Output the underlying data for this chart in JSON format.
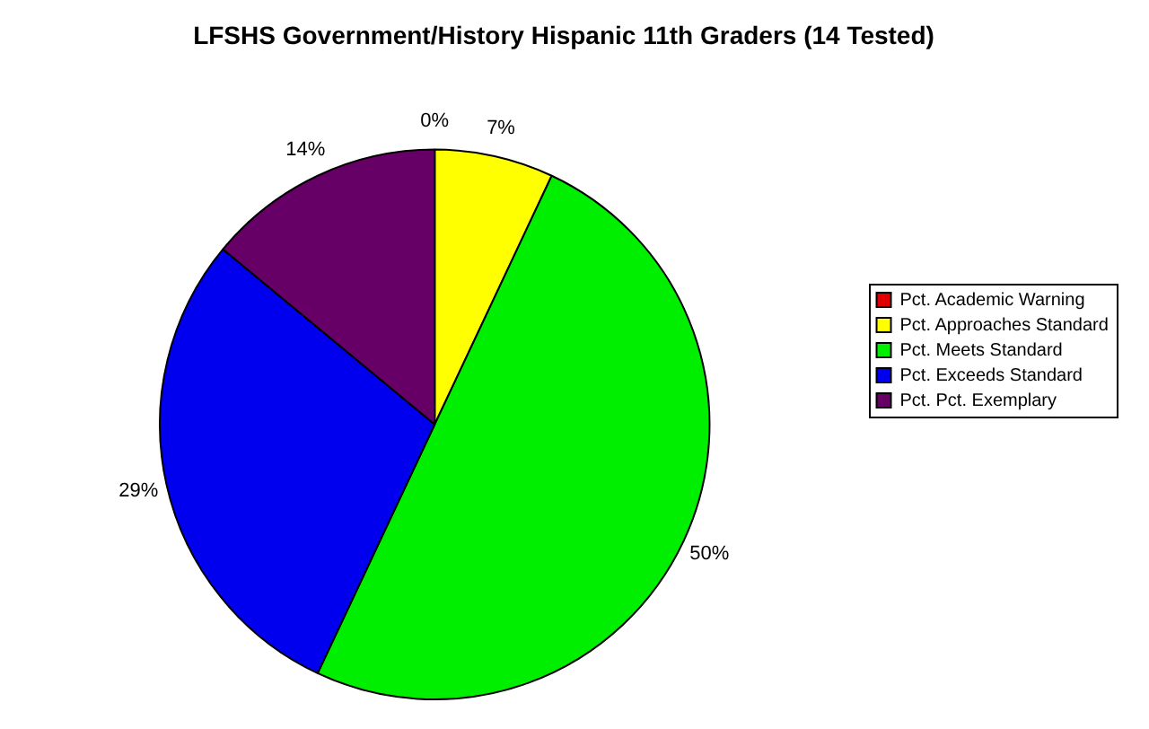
{
  "chart_data": {
    "type": "pie",
    "title": "LFSHS Government/History Hispanic 11th Graders (14 Tested)",
    "categories": [
      "Pct. Academic Warning",
      "Pct. Approaches Standard",
      "Pct. Meets Standard",
      "Pct. Exceeds Standard",
      "Pct. Pct. Exemplary"
    ],
    "values": [
      0,
      7,
      50,
      29,
      14
    ],
    "colors": [
      "#e00000",
      "#ffff00",
      "#00ee00",
      "#0000ee",
      "#660066"
    ],
    "value_labels": [
      "0%",
      "7%",
      "50%",
      "29%",
      "14%"
    ],
    "legend": "right"
  }
}
